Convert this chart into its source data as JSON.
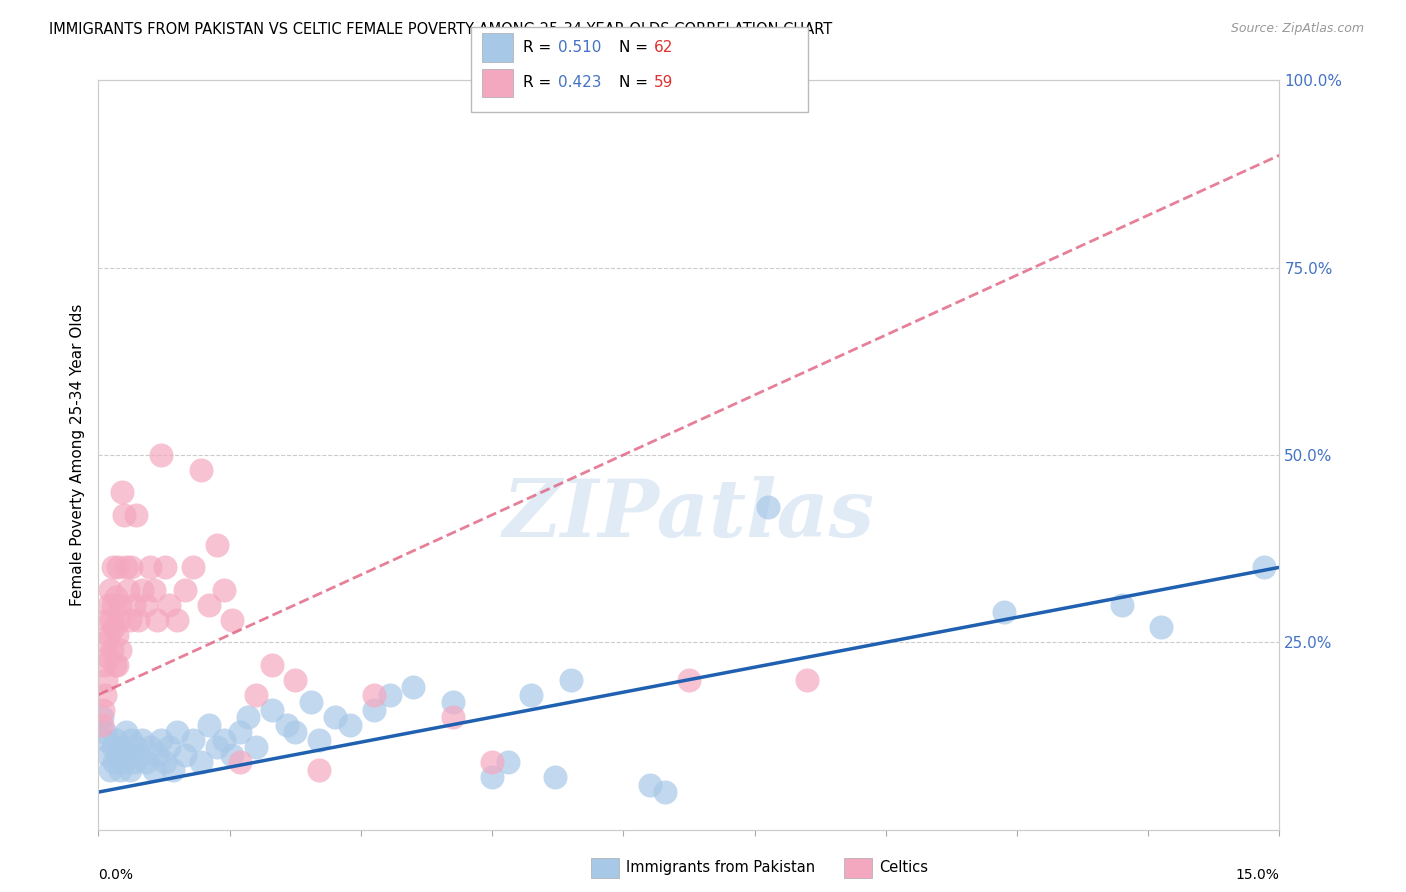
{
  "title": "IMMIGRANTS FROM PAKISTAN VS CELTIC FEMALE POVERTY AMONG 25-34 YEAR OLDS CORRELATION CHART",
  "source": "Source: ZipAtlas.com",
  "ylabel": "Female Poverty Among 25-34 Year Olds",
  "xmin": 0.0,
  "xmax": 15.0,
  "ymin": 0.0,
  "ymax": 100.0,
  "right_yticks": [
    25.0,
    50.0,
    75.0,
    100.0
  ],
  "right_ytick_labels": [
    "25.0%",
    "50.0%",
    "75.0%",
    "100.0%"
  ],
  "pakistan_color": "#A8C8E8",
  "celtic_color": "#F4A8C0",
  "pakistan_line_color": "#2060B0",
  "celtic_line_color": "#E06080",
  "pakistan_R": 0.51,
  "pakistan_N": 62,
  "celtic_R": 0.423,
  "celtic_N": 59,
  "watermark": "ZIPatlas",
  "pakistan_points": [
    [
      0.05,
      15
    ],
    [
      0.08,
      13
    ],
    [
      0.1,
      12
    ],
    [
      0.12,
      10
    ],
    [
      0.15,
      8
    ],
    [
      0.18,
      11
    ],
    [
      0.2,
      9
    ],
    [
      0.22,
      12
    ],
    [
      0.25,
      10
    ],
    [
      0.28,
      8
    ],
    [
      0.3,
      11
    ],
    [
      0.32,
      9
    ],
    [
      0.35,
      13
    ],
    [
      0.38,
      10
    ],
    [
      0.4,
      8
    ],
    [
      0.42,
      12
    ],
    [
      0.45,
      9
    ],
    [
      0.48,
      11
    ],
    [
      0.5,
      10
    ],
    [
      0.55,
      12
    ],
    [
      0.6,
      9
    ],
    [
      0.65,
      11
    ],
    [
      0.7,
      8
    ],
    [
      0.75,
      10
    ],
    [
      0.8,
      12
    ],
    [
      0.85,
      9
    ],
    [
      0.9,
      11
    ],
    [
      0.95,
      8
    ],
    [
      1.0,
      13
    ],
    [
      1.1,
      10
    ],
    [
      1.2,
      12
    ],
    [
      1.3,
      9
    ],
    [
      1.4,
      14
    ],
    [
      1.5,
      11
    ],
    [
      1.6,
      12
    ],
    [
      1.7,
      10
    ],
    [
      1.8,
      13
    ],
    [
      1.9,
      15
    ],
    [
      2.0,
      11
    ],
    [
      2.2,
      16
    ],
    [
      2.4,
      14
    ],
    [
      2.5,
      13
    ],
    [
      2.7,
      17
    ],
    [
      2.8,
      12
    ],
    [
      3.0,
      15
    ],
    [
      3.2,
      14
    ],
    [
      3.5,
      16
    ],
    [
      3.7,
      18
    ],
    [
      4.0,
      19
    ],
    [
      4.5,
      17
    ],
    [
      5.0,
      7
    ],
    [
      5.2,
      9
    ],
    [
      5.5,
      18
    ],
    [
      5.8,
      7
    ],
    [
      6.0,
      20
    ],
    [
      7.0,
      6
    ],
    [
      7.2,
      5
    ],
    [
      8.5,
      43
    ],
    [
      11.5,
      29
    ],
    [
      13.0,
      30
    ],
    [
      13.5,
      27
    ],
    [
      14.8,
      35
    ]
  ],
  "celtic_points": [
    [
      0.04,
      14
    ],
    [
      0.06,
      16
    ],
    [
      0.07,
      22
    ],
    [
      0.08,
      18
    ],
    [
      0.09,
      25
    ],
    [
      0.1,
      20
    ],
    [
      0.11,
      28
    ],
    [
      0.12,
      23
    ],
    [
      0.13,
      30
    ],
    [
      0.14,
      26
    ],
    [
      0.15,
      32
    ],
    [
      0.16,
      28
    ],
    [
      0.17,
      24
    ],
    [
      0.18,
      35
    ],
    [
      0.19,
      30
    ],
    [
      0.2,
      27
    ],
    [
      0.21,
      22
    ],
    [
      0.22,
      31
    ],
    [
      0.23,
      26
    ],
    [
      0.24,
      22
    ],
    [
      0.25,
      35
    ],
    [
      0.26,
      28
    ],
    [
      0.27,
      24
    ],
    [
      0.28,
      30
    ],
    [
      0.3,
      45
    ],
    [
      0.32,
      42
    ],
    [
      0.35,
      35
    ],
    [
      0.38,
      32
    ],
    [
      0.4,
      28
    ],
    [
      0.42,
      35
    ],
    [
      0.45,
      30
    ],
    [
      0.48,
      42
    ],
    [
      0.5,
      28
    ],
    [
      0.55,
      32
    ],
    [
      0.6,
      30
    ],
    [
      0.65,
      35
    ],
    [
      0.7,
      32
    ],
    [
      0.75,
      28
    ],
    [
      0.8,
      50
    ],
    [
      0.85,
      35
    ],
    [
      0.9,
      30
    ],
    [
      1.0,
      28
    ],
    [
      1.1,
      32
    ],
    [
      1.2,
      35
    ],
    [
      1.3,
      48
    ],
    [
      1.4,
      30
    ],
    [
      1.5,
      38
    ],
    [
      1.6,
      32
    ],
    [
      1.7,
      28
    ],
    [
      1.8,
      9
    ],
    [
      2.0,
      18
    ],
    [
      2.2,
      22
    ],
    [
      2.5,
      20
    ],
    [
      2.8,
      8
    ],
    [
      3.5,
      18
    ],
    [
      4.5,
      15
    ],
    [
      5.0,
      9
    ],
    [
      7.5,
      20
    ],
    [
      9.0,
      20
    ]
  ]
}
